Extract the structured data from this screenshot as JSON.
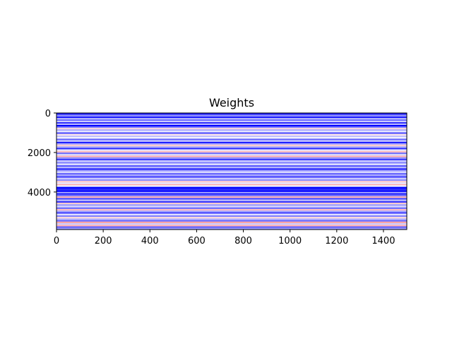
{
  "chart_data": {
    "type": "heatmap",
    "title": "Weights",
    "xlabel": "",
    "ylabel": "",
    "xlim": [
      0,
      1500
    ],
    "ylim": [
      5900,
      0
    ],
    "x_ticks": [
      0,
      200,
      400,
      600,
      800,
      1000,
      1200,
      1400
    ],
    "y_ticks": [
      0,
      2000,
      4000
    ],
    "grid": false,
    "colormap": "bwr",
    "colors": {
      "negative": "#0000ff",
      "zero": "#ffffff",
      "positive": "#ff0000"
    },
    "band_rows": 5900,
    "bands": [
      {
        "y0": 0,
        "y1": 60,
        "v": -1.0
      },
      {
        "y0": 60,
        "y1": 120,
        "v": -0.7
      },
      {
        "y0": 120,
        "y1": 180,
        "v": -0.4
      },
      {
        "y0": 180,
        "y1": 250,
        "v": -0.9
      },
      {
        "y0": 250,
        "y1": 330,
        "v": -0.3
      },
      {
        "y0": 330,
        "y1": 400,
        "v": -0.6
      },
      {
        "y0": 400,
        "y1": 460,
        "v": -0.15
      },
      {
        "y0": 460,
        "y1": 540,
        "v": -0.8
      },
      {
        "y0": 540,
        "y1": 600,
        "v": -0.2
      },
      {
        "y0": 600,
        "y1": 680,
        "v": -1.0
      },
      {
        "y0": 680,
        "y1": 760,
        "v": -0.5
      },
      {
        "y0": 760,
        "y1": 830,
        "v": 0.15
      },
      {
        "y0": 830,
        "y1": 900,
        "v": -0.35
      },
      {
        "y0": 900,
        "y1": 980,
        "v": -0.1
      },
      {
        "y0": 980,
        "y1": 1060,
        "v": -0.7
      },
      {
        "y0": 1060,
        "y1": 1140,
        "v": 0.1
      },
      {
        "y0": 1140,
        "y1": 1220,
        "v": -0.25
      },
      {
        "y0": 1220,
        "y1": 1300,
        "v": -0.05
      },
      {
        "y0": 1300,
        "y1": 1380,
        "v": -0.6
      },
      {
        "y0": 1380,
        "y1": 1460,
        "v": -0.2
      },
      {
        "y0": 1460,
        "y1": 1520,
        "v": -1.0
      },
      {
        "y0": 1520,
        "y1": 1600,
        "v": -0.4
      },
      {
        "y0": 1600,
        "y1": 1680,
        "v": 0.2
      },
      {
        "y0": 1680,
        "y1": 1760,
        "v": -0.3
      },
      {
        "y0": 1760,
        "y1": 1840,
        "v": -0.8
      },
      {
        "y0": 1840,
        "y1": 1920,
        "v": -0.1
      },
      {
        "y0": 1920,
        "y1": 2000,
        "v": 0.25
      },
      {
        "y0": 2000,
        "y1": 2080,
        "v": -0.55
      },
      {
        "y0": 2080,
        "y1": 2160,
        "v": -0.15
      },
      {
        "y0": 2160,
        "y1": 2240,
        "v": 0.3
      },
      {
        "y0": 2240,
        "y1": 2320,
        "v": -0.45
      },
      {
        "y0": 2320,
        "y1": 2400,
        "v": -0.75
      },
      {
        "y0": 2400,
        "y1": 2480,
        "v": -0.2
      },
      {
        "y0": 2480,
        "y1": 2560,
        "v": -0.5
      },
      {
        "y0": 2560,
        "y1": 2640,
        "v": -0.1
      },
      {
        "y0": 2640,
        "y1": 2720,
        "v": -0.65
      },
      {
        "y0": 2720,
        "y1": 2800,
        "v": -0.3
      },
      {
        "y0": 2800,
        "y1": 2880,
        "v": -0.85
      },
      {
        "y0": 2880,
        "y1": 2960,
        "v": -0.4
      },
      {
        "y0": 2960,
        "y1": 3040,
        "v": -0.15
      },
      {
        "y0": 3040,
        "y1": 3120,
        "v": -0.6
      },
      {
        "y0": 3120,
        "y1": 3200,
        "v": -0.35
      },
      {
        "y0": 3200,
        "y1": 3280,
        "v": -0.75
      },
      {
        "y0": 3280,
        "y1": 3360,
        "v": -0.2
      },
      {
        "y0": 3360,
        "y1": 3440,
        "v": -0.45
      },
      {
        "y0": 3440,
        "y1": 3520,
        "v": 0.2
      },
      {
        "y0": 3520,
        "y1": 3600,
        "v": -0.1
      },
      {
        "y0": 3600,
        "y1": 3660,
        "v": 0.35
      },
      {
        "y0": 3660,
        "y1": 3740,
        "v": -0.05
      },
      {
        "y0": 3740,
        "y1": 3830,
        "v": -1.0
      },
      {
        "y0": 3830,
        "y1": 3920,
        "v": -0.85
      },
      {
        "y0": 3920,
        "y1": 4000,
        "v": -1.0
      },
      {
        "y0": 4000,
        "y1": 4060,
        "v": -0.3
      },
      {
        "y0": 4060,
        "y1": 4140,
        "v": -0.9
      },
      {
        "y0": 4140,
        "y1": 4220,
        "v": -0.55
      },
      {
        "y0": 4220,
        "y1": 4300,
        "v": 0.3
      },
      {
        "y0": 4300,
        "y1": 4380,
        "v": -0.7
      },
      {
        "y0": 4380,
        "y1": 4460,
        "v": -0.25
      },
      {
        "y0": 4460,
        "y1": 4540,
        "v": -0.8
      },
      {
        "y0": 4540,
        "y1": 4620,
        "v": 0.2
      },
      {
        "y0": 4620,
        "y1": 4700,
        "v": -0.4
      },
      {
        "y0": 4700,
        "y1": 4780,
        "v": -0.15
      },
      {
        "y0": 4780,
        "y1": 4860,
        "v": -0.6
      },
      {
        "y0": 4860,
        "y1": 4940,
        "v": 0.25
      },
      {
        "y0": 4940,
        "y1": 5020,
        "v": -0.35
      },
      {
        "y0": 5020,
        "y1": 5100,
        "v": -0.75
      },
      {
        "y0": 5100,
        "y1": 5180,
        "v": -0.1
      },
      {
        "y0": 5180,
        "y1": 5260,
        "v": -0.5
      },
      {
        "y0": 5260,
        "y1": 5340,
        "v": 0.15
      },
      {
        "y0": 5340,
        "y1": 5420,
        "v": -0.3
      },
      {
        "y0": 5420,
        "y1": 5500,
        "v": -0.6
      },
      {
        "y0": 5500,
        "y1": 5580,
        "v": 0.35
      },
      {
        "y0": 5580,
        "y1": 5660,
        "v": -0.2
      },
      {
        "y0": 5660,
        "y1": 5740,
        "v": 0.3
      },
      {
        "y0": 5740,
        "y1": 5820,
        "v": -0.65
      },
      {
        "y0": 5820,
        "y1": 5900,
        "v": -0.4
      }
    ]
  }
}
